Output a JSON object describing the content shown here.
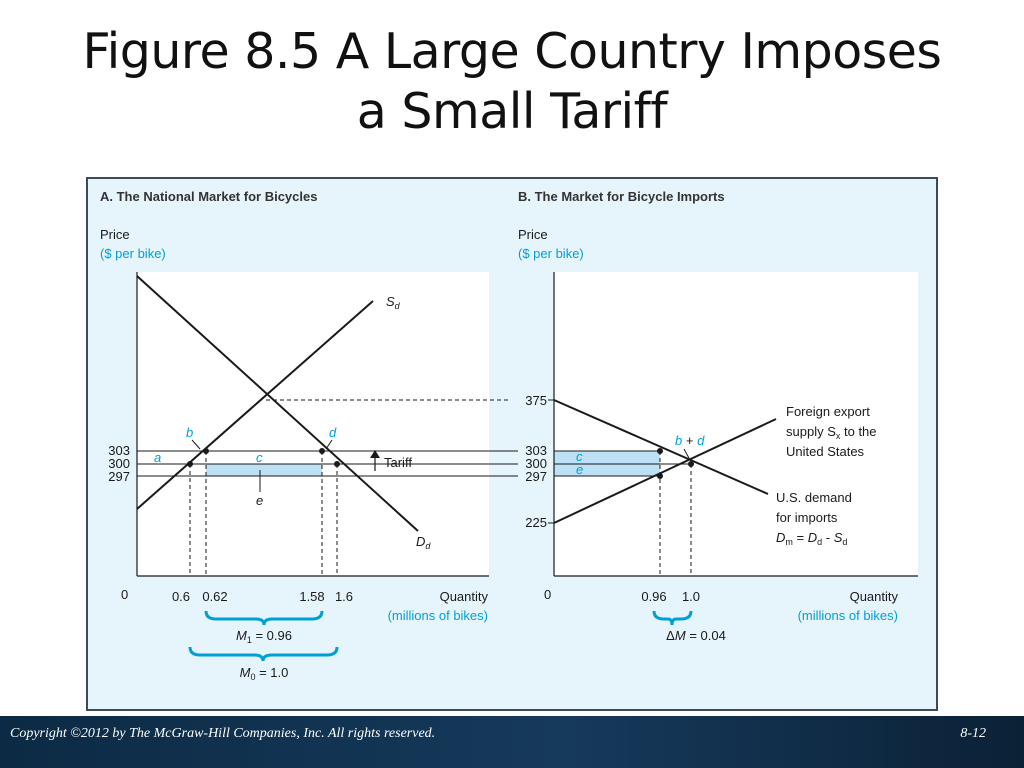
{
  "slide": {
    "title_line1": "Figure 8.5 A Large Country Imposes",
    "title_line2": "a Small Tariff",
    "copyright": "Copyright ©2012 by The McGraw-Hill Companies, Inc.  All rights reserved.",
    "slide_number": "8-12"
  },
  "colors": {
    "panel_bg": "#e6f4fb",
    "plot_bg": "#ffffff",
    "accent_cyan": "#00a0d6",
    "tariff_area": "#bde0f5",
    "line": "#1a1a1a",
    "footer_bg": "#0f2f4d"
  },
  "chart_data": [
    {
      "type": "line",
      "panel_title": "A. The National Market for Bicycles",
      "ylabel": "Price",
      "ylabel_unit": "($ per bike)",
      "xlabel": "Quantity",
      "xlabel_unit": "(millions of bikes)",
      "origin_label": "0",
      "x_ticks": [
        {
          "value": 0.6,
          "label": "0.6"
        },
        {
          "value": 0.62,
          "label": "0.62"
        },
        {
          "value": 1.58,
          "label": "1.58"
        },
        {
          "value": 1.6,
          "label": "1.6"
        }
      ],
      "y_ticks": [
        {
          "value": 303,
          "label": "303"
        },
        {
          "value": 300,
          "label": "300"
        },
        {
          "value": 297,
          "label": "297"
        }
      ],
      "series": [
        {
          "name": "Sd",
          "label_main": "S",
          "label_sub": "d",
          "description": "domestic supply, upward sloping"
        },
        {
          "name": "Dd",
          "label_main": "D",
          "label_sub": "d",
          "description": "domestic demand, downward sloping"
        }
      ],
      "points": [
        {
          "label": "a",
          "x": 0.6,
          "y": 300
        },
        {
          "label": "b",
          "x": 0.62,
          "y": 303
        },
        {
          "label": "d",
          "x": 1.58,
          "y": 303
        },
        {
          "label": "1.6",
          "x": 1.6,
          "y": 300
        }
      ],
      "areas": [
        {
          "label": "c",
          "x_from": 0.62,
          "x_to": 1.58,
          "y_from": 297,
          "y_to": 303
        },
        {
          "label": "e",
          "x_from": 0.62,
          "x_to": 1.58,
          "y_from": 297,
          "y_to": 300
        }
      ],
      "annotations": {
        "tariff": "Tariff",
        "m1_main": "M",
        "m1_sub": "1",
        "m1_value": " = 0.96",
        "m0_main": "M",
        "m0_sub": "0",
        "m0_value": " = 1.0"
      }
    },
    {
      "type": "line",
      "panel_title": "B. The Market for Bicycle Imports",
      "ylabel": "Price",
      "ylabel_unit": "($ per bike)",
      "xlabel": "Quantity",
      "xlabel_unit": "(millions of bikes)",
      "origin_label": "0",
      "x_ticks": [
        {
          "value": 0.96,
          "label": "0.96"
        },
        {
          "value": 1.0,
          "label": "1.0"
        }
      ],
      "y_ticks": [
        {
          "value": 375,
          "label": "375"
        },
        {
          "value": 303,
          "label": "303"
        },
        {
          "value": 300,
          "label": "300"
        },
        {
          "value": 297,
          "label": "297"
        },
        {
          "value": 225,
          "label": "225"
        }
      ],
      "series": [
        {
          "name": "Foreign export supply",
          "label_lines": [
            "Foreign export",
            "supply S",
            "x",
            " to the",
            "United States"
          ]
        },
        {
          "name": "U.S. demand for imports",
          "label_lines": [
            "U.S. demand",
            "for imports"
          ],
          "formula": {
            "d_main": "D",
            "d_sub": "m",
            "eq": " = ",
            "d2_main": "D",
            "d2_sub": "d",
            "minus": " - ",
            "s_main": "S",
            "s_sub": "d"
          }
        }
      ],
      "points": [
        {
          "label": "b + d",
          "x": 0.96,
          "y": 303
        },
        {
          "label": "",
          "x": 1.0,
          "y": 300
        },
        {
          "label": "",
          "x": 0.96,
          "y": 297
        }
      ],
      "areas": [
        {
          "label": "c",
          "x_from": 0.0,
          "x_to": 0.96,
          "y_from": 297,
          "y_to": 303
        },
        {
          "label": "e",
          "x_from": 0.0,
          "x_to": 0.96,
          "y_from": 297,
          "y_to": 300
        }
      ],
      "annotations": {
        "bd_b": "b",
        "bd_plus": " + ",
        "bd_d": "d",
        "dm_prefix": "Δ",
        "dm_main": "M",
        "dm_value": " = 0.04"
      }
    }
  ]
}
